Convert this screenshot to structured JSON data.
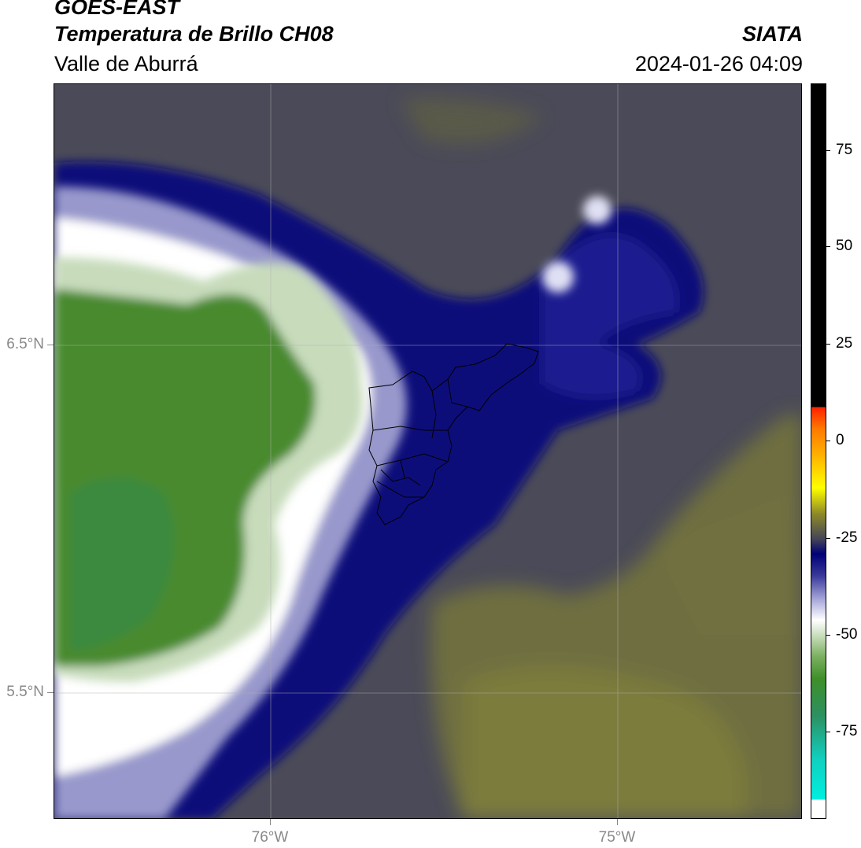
{
  "header": {
    "title_line1": "GOES-EAST",
    "title_line2": "Temperatura de Brillo CH08",
    "subtitle": "Valle de Aburrá",
    "organization": "SIATA",
    "datetime": "2024-01-26 04:09"
  },
  "map": {
    "lat_labels": [
      "6.5°N",
      "5.5°N"
    ],
    "lon_labels": [
      "76°W",
      "75°W"
    ],
    "colors": {
      "background": "#4a4a58",
      "olive": "#7a7a3c",
      "navy": "#0a0a7a",
      "lavender": "#9898cc",
      "white": "#ffffff",
      "green": "#4a8a2e",
      "boundary": "#000000"
    }
  },
  "colorbar": {
    "labels": [
      "75",
      "50",
      "25",
      "0",
      "-25",
      "-50",
      "-75"
    ]
  }
}
